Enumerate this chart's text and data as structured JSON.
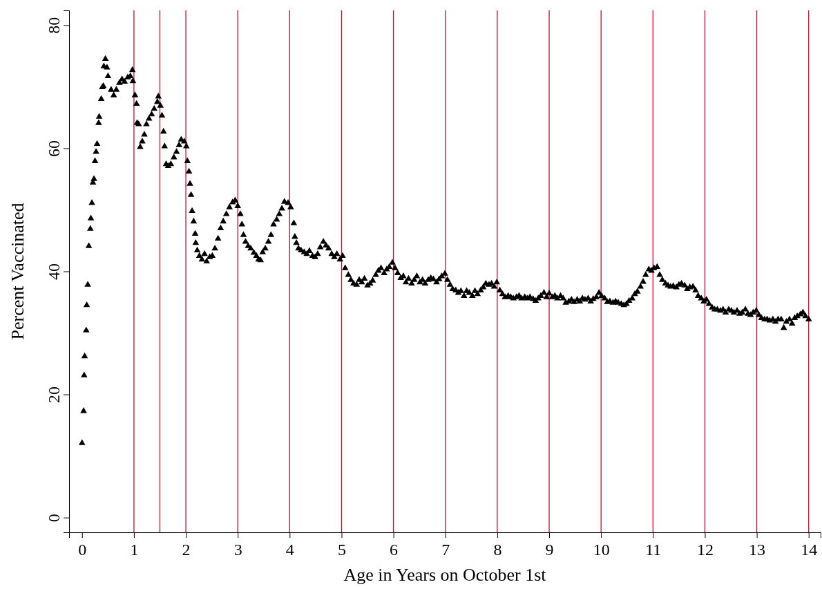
{
  "chart_data": {
    "type": "scatter",
    "xlabel": "Age in Years on October 1st",
    "ylabel": "Percent Vaccinated",
    "xlim": [
      -0.25,
      14.23
    ],
    "ylim": [
      -2.4,
      82.4
    ],
    "xticks": [
      0,
      1,
      2,
      3,
      4,
      5,
      6,
      7,
      8,
      9,
      10,
      11,
      12,
      13,
      14
    ],
    "yticks": [
      0,
      20,
      40,
      60,
      80
    ],
    "grid": false,
    "marker": "triangle",
    "ref_lines": [
      {
        "axis": "x",
        "value": 1,
        "color": "#c8102e"
      },
      {
        "axis": "x",
        "value": 1.5,
        "color": "#c8102e"
      },
      {
        "axis": "x",
        "value": 2,
        "color": "#c8102e"
      },
      {
        "axis": "x",
        "value": 3,
        "color": "#c8102e"
      },
      {
        "axis": "x",
        "value": 4,
        "color": "#c8102e"
      },
      {
        "axis": "x",
        "value": 5,
        "color": "#c8102e"
      },
      {
        "axis": "x",
        "value": 6,
        "color": "#c8102e"
      },
      {
        "axis": "x",
        "value": 7,
        "color": "#c8102e"
      },
      {
        "axis": "x",
        "value": 8,
        "color": "#c8102e"
      },
      {
        "axis": "x",
        "value": 9,
        "color": "#c8102e"
      },
      {
        "axis": "x",
        "value": 10,
        "color": "#c8102e"
      },
      {
        "axis": "x",
        "value": 11,
        "color": "#c8102e"
      },
      {
        "axis": "x",
        "value": 12,
        "color": "#c8102e"
      },
      {
        "axis": "x",
        "value": 13,
        "color": "#c8102e"
      },
      {
        "axis": "x",
        "value": 14,
        "color": "#c8102e"
      }
    ],
    "series": [
      {
        "color": "#000000",
        "x": [
          0.0,
          0.03,
          0.04,
          0.05,
          0.08,
          0.09,
          0.11,
          0.13,
          0.16,
          0.17,
          0.19,
          0.21,
          0.23,
          0.25,
          0.27,
          0.29,
          0.32,
          0.33,
          0.37,
          0.39,
          0.41,
          0.42,
          0.45,
          0.48,
          0.5,
          0.56,
          0.61,
          0.66,
          0.72,
          0.77,
          0.82,
          0.88,
          0.93,
          0.97,
          0.98,
          1.02,
          1.05,
          1.06,
          1.09,
          1.12,
          1.16,
          1.2,
          1.24,
          1.29,
          1.34,
          1.39,
          1.45,
          1.47,
          1.51,
          1.54,
          1.57,
          1.59,
          1.62,
          1.66,
          1.71,
          1.77,
          1.82,
          1.87,
          1.91,
          1.97,
          2.01,
          2.03,
          2.06,
          2.08,
          2.1,
          2.12,
          2.15,
          2.18,
          2.19,
          2.22,
          2.26,
          2.31,
          2.36,
          2.4,
          2.46,
          2.51,
          2.56,
          2.62,
          2.67,
          2.72,
          2.78,
          2.84,
          2.9,
          2.95,
          3.0,
          3.05,
          3.08,
          3.11,
          3.15,
          3.2,
          3.25,
          3.31,
          3.36,
          3.4,
          3.44,
          3.48,
          3.53,
          3.59,
          3.64,
          3.69,
          3.75,
          3.8,
          3.85,
          3.9,
          3.97,
          4.02,
          4.08,
          4.1,
          4.13,
          4.17,
          4.22,
          4.28,
          4.33,
          4.38,
          4.44,
          4.49,
          4.54,
          4.59,
          4.65,
          4.7,
          4.75,
          4.81,
          4.86,
          4.91,
          4.97,
          5.02,
          5.07,
          5.13,
          5.18,
          5.23,
          5.29,
          5.34,
          5.39,
          5.44,
          5.5,
          5.55,
          5.6,
          5.66,
          5.71,
          5.76,
          5.82,
          5.87,
          5.92,
          5.98,
          6.03,
          6.08,
          6.14,
          6.19,
          6.24,
          6.29,
          6.35,
          6.4,
          6.45,
          6.51,
          6.56,
          6.61,
          6.67,
          6.72,
          6.77,
          6.83,
          6.88,
          6.93,
          6.99,
          7.04,
          7.09,
          7.14,
          7.2,
          7.25,
          7.3,
          7.36,
          7.41,
          7.46,
          7.52,
          7.57,
          7.62,
          7.68,
          7.73,
          7.78,
          7.84,
          7.89,
          7.94,
          7.99,
          8.05,
          8.1,
          8.15,
          8.21,
          8.26,
          8.31,
          8.37,
          8.42,
          8.47,
          8.53,
          8.58,
          8.63,
          8.69,
          8.74,
          8.79,
          8.84,
          8.9,
          8.95,
          9.0,
          9.06,
          9.11,
          9.16,
          9.22,
          9.27,
          9.32,
          9.38,
          9.43,
          9.48,
          9.54,
          9.59,
          9.64,
          9.69,
          9.75,
          9.8,
          9.85,
          9.91,
          9.96,
          10.01,
          10.07,
          10.12,
          10.17,
          10.23,
          10.28,
          10.33,
          10.39,
          10.44,
          10.49,
          10.54,
          10.6,
          10.65,
          10.7,
          10.76,
          10.81,
          10.86,
          10.92,
          10.97,
          11.02,
          11.08,
          11.13,
          11.18,
          11.24,
          11.29,
          11.34,
          11.39,
          11.45,
          11.5,
          11.55,
          11.61,
          11.66,
          11.71,
          11.77,
          11.82,
          11.87,
          11.93,
          11.98,
          12.03,
          12.08,
          12.14,
          12.19,
          12.24,
          12.3,
          12.35,
          12.4,
          12.46,
          12.51,
          12.56,
          12.62,
          12.67,
          12.72,
          12.78,
          12.83,
          12.88,
          12.93,
          12.99,
          13.04,
          13.09,
          13.15,
          13.2,
          13.25,
          13.31,
          13.36,
          13.41,
          13.47,
          13.52,
          13.57,
          13.63,
          13.68,
          13.73,
          13.78,
          13.84,
          13.89,
          13.94,
          14.0
        ],
        "values": [
          12.1,
          17.3,
          23.1,
          26.2,
          30.4,
          34.5,
          37.8,
          44.1,
          46.9,
          48.6,
          51.1,
          54.4,
          55.0,
          57.9,
          59.4,
          60.7,
          64.1,
          65.1,
          68.0,
          69.9,
          70.1,
          73.3,
          74.5,
          73.1,
          71.7,
          69.5,
          68.6,
          69.5,
          70.6,
          71.2,
          70.8,
          71.5,
          71.7,
          72.7,
          70.9,
          68.6,
          67.2,
          64.1,
          63.9,
          60.2,
          61.1,
          62.2,
          63.9,
          64.8,
          65.5,
          66.4,
          67.5,
          68.4,
          66.9,
          65.3,
          62.7,
          60.3,
          57.4,
          57.1,
          57.4,
          58.5,
          59.4,
          60.5,
          61.4,
          61.1,
          60.3,
          57.9,
          56.2,
          54.2,
          52.4,
          49.8,
          48.1,
          46.1,
          44.6,
          43.4,
          42.5,
          41.9,
          42.8,
          41.6,
          42.3,
          42.5,
          43.7,
          45.3,
          47.0,
          48.1,
          49.3,
          50.4,
          51.2,
          51.5,
          50.6,
          49.3,
          47.6,
          45.9,
          44.8,
          44.1,
          43.7,
          43.0,
          42.5,
          41.9,
          41.8,
          43.1,
          43.7,
          44.8,
          45.9,
          47.6,
          48.4,
          49.3,
          50.2,
          51.3,
          51.1,
          50.4,
          47.8,
          45.6,
          44.6,
          43.7,
          43.4,
          43.1,
          42.8,
          43.3,
          42.5,
          42.3,
          42.8,
          43.9,
          44.8,
          44.2,
          43.7,
          42.8,
          42.3,
          42.8,
          41.9,
          42.5,
          40.5,
          39.4,
          38.6,
          38.0,
          37.8,
          38.6,
          38.2,
          38.8,
          37.7,
          38.0,
          38.5,
          39.4,
          40.1,
          40.5,
          39.7,
          40.3,
          40.7,
          41.4,
          40.5,
          39.7,
          38.9,
          39.2,
          38.2,
          38.8,
          38.0,
          38.6,
          39.2,
          38.2,
          38.6,
          38.0,
          38.6,
          38.9,
          38.7,
          38.2,
          38.7,
          39.2,
          39.6,
          38.6,
          37.8,
          37.1,
          36.9,
          36.5,
          36.8,
          36.0,
          36.8,
          36.5,
          36.0,
          36.8,
          36.3,
          36.9,
          37.4,
          38.0,
          37.8,
          38.0,
          37.5,
          38.2,
          36.9,
          36.3,
          35.8,
          36.0,
          35.8,
          35.6,
          35.8,
          36.0,
          35.6,
          35.8,
          35.6,
          35.8,
          35.5,
          35.2,
          35.6,
          36.0,
          36.5,
          35.8,
          36.4,
          35.8,
          36.0,
          35.6,
          36.0,
          35.6,
          34.9,
          35.1,
          35.4,
          35.0,
          35.4,
          35.1,
          35.6,
          35.4,
          35.6,
          35.1,
          35.5,
          35.8,
          36.5,
          36.0,
          35.6,
          35.0,
          35.1,
          34.9,
          35.1,
          34.9,
          34.7,
          34.5,
          34.7,
          35.2,
          35.6,
          36.3,
          36.7,
          37.5,
          38.3,
          39.4,
          40.3,
          40.1,
          40.5,
          40.7,
          39.4,
          38.6,
          38.0,
          37.7,
          37.5,
          37.6,
          37.4,
          37.8,
          38.0,
          37.7,
          37.1,
          37.4,
          37.5,
          36.9,
          36.0,
          35.6,
          35.1,
          35.4,
          34.7,
          34.1,
          33.8,
          33.8,
          33.6,
          33.8,
          33.3,
          33.8,
          33.6,
          33.3,
          33.6,
          33.1,
          33.3,
          33.8,
          33.1,
          32.9,
          33.3,
          33.6,
          32.9,
          32.4,
          32.2,
          32.2,
          32.0,
          32.2,
          31.8,
          32.2,
          32.2,
          30.8,
          31.8,
          32.2,
          31.5,
          32.4,
          32.7,
          33.0,
          33.3,
          32.7,
          32.2
        ]
      }
    ]
  }
}
